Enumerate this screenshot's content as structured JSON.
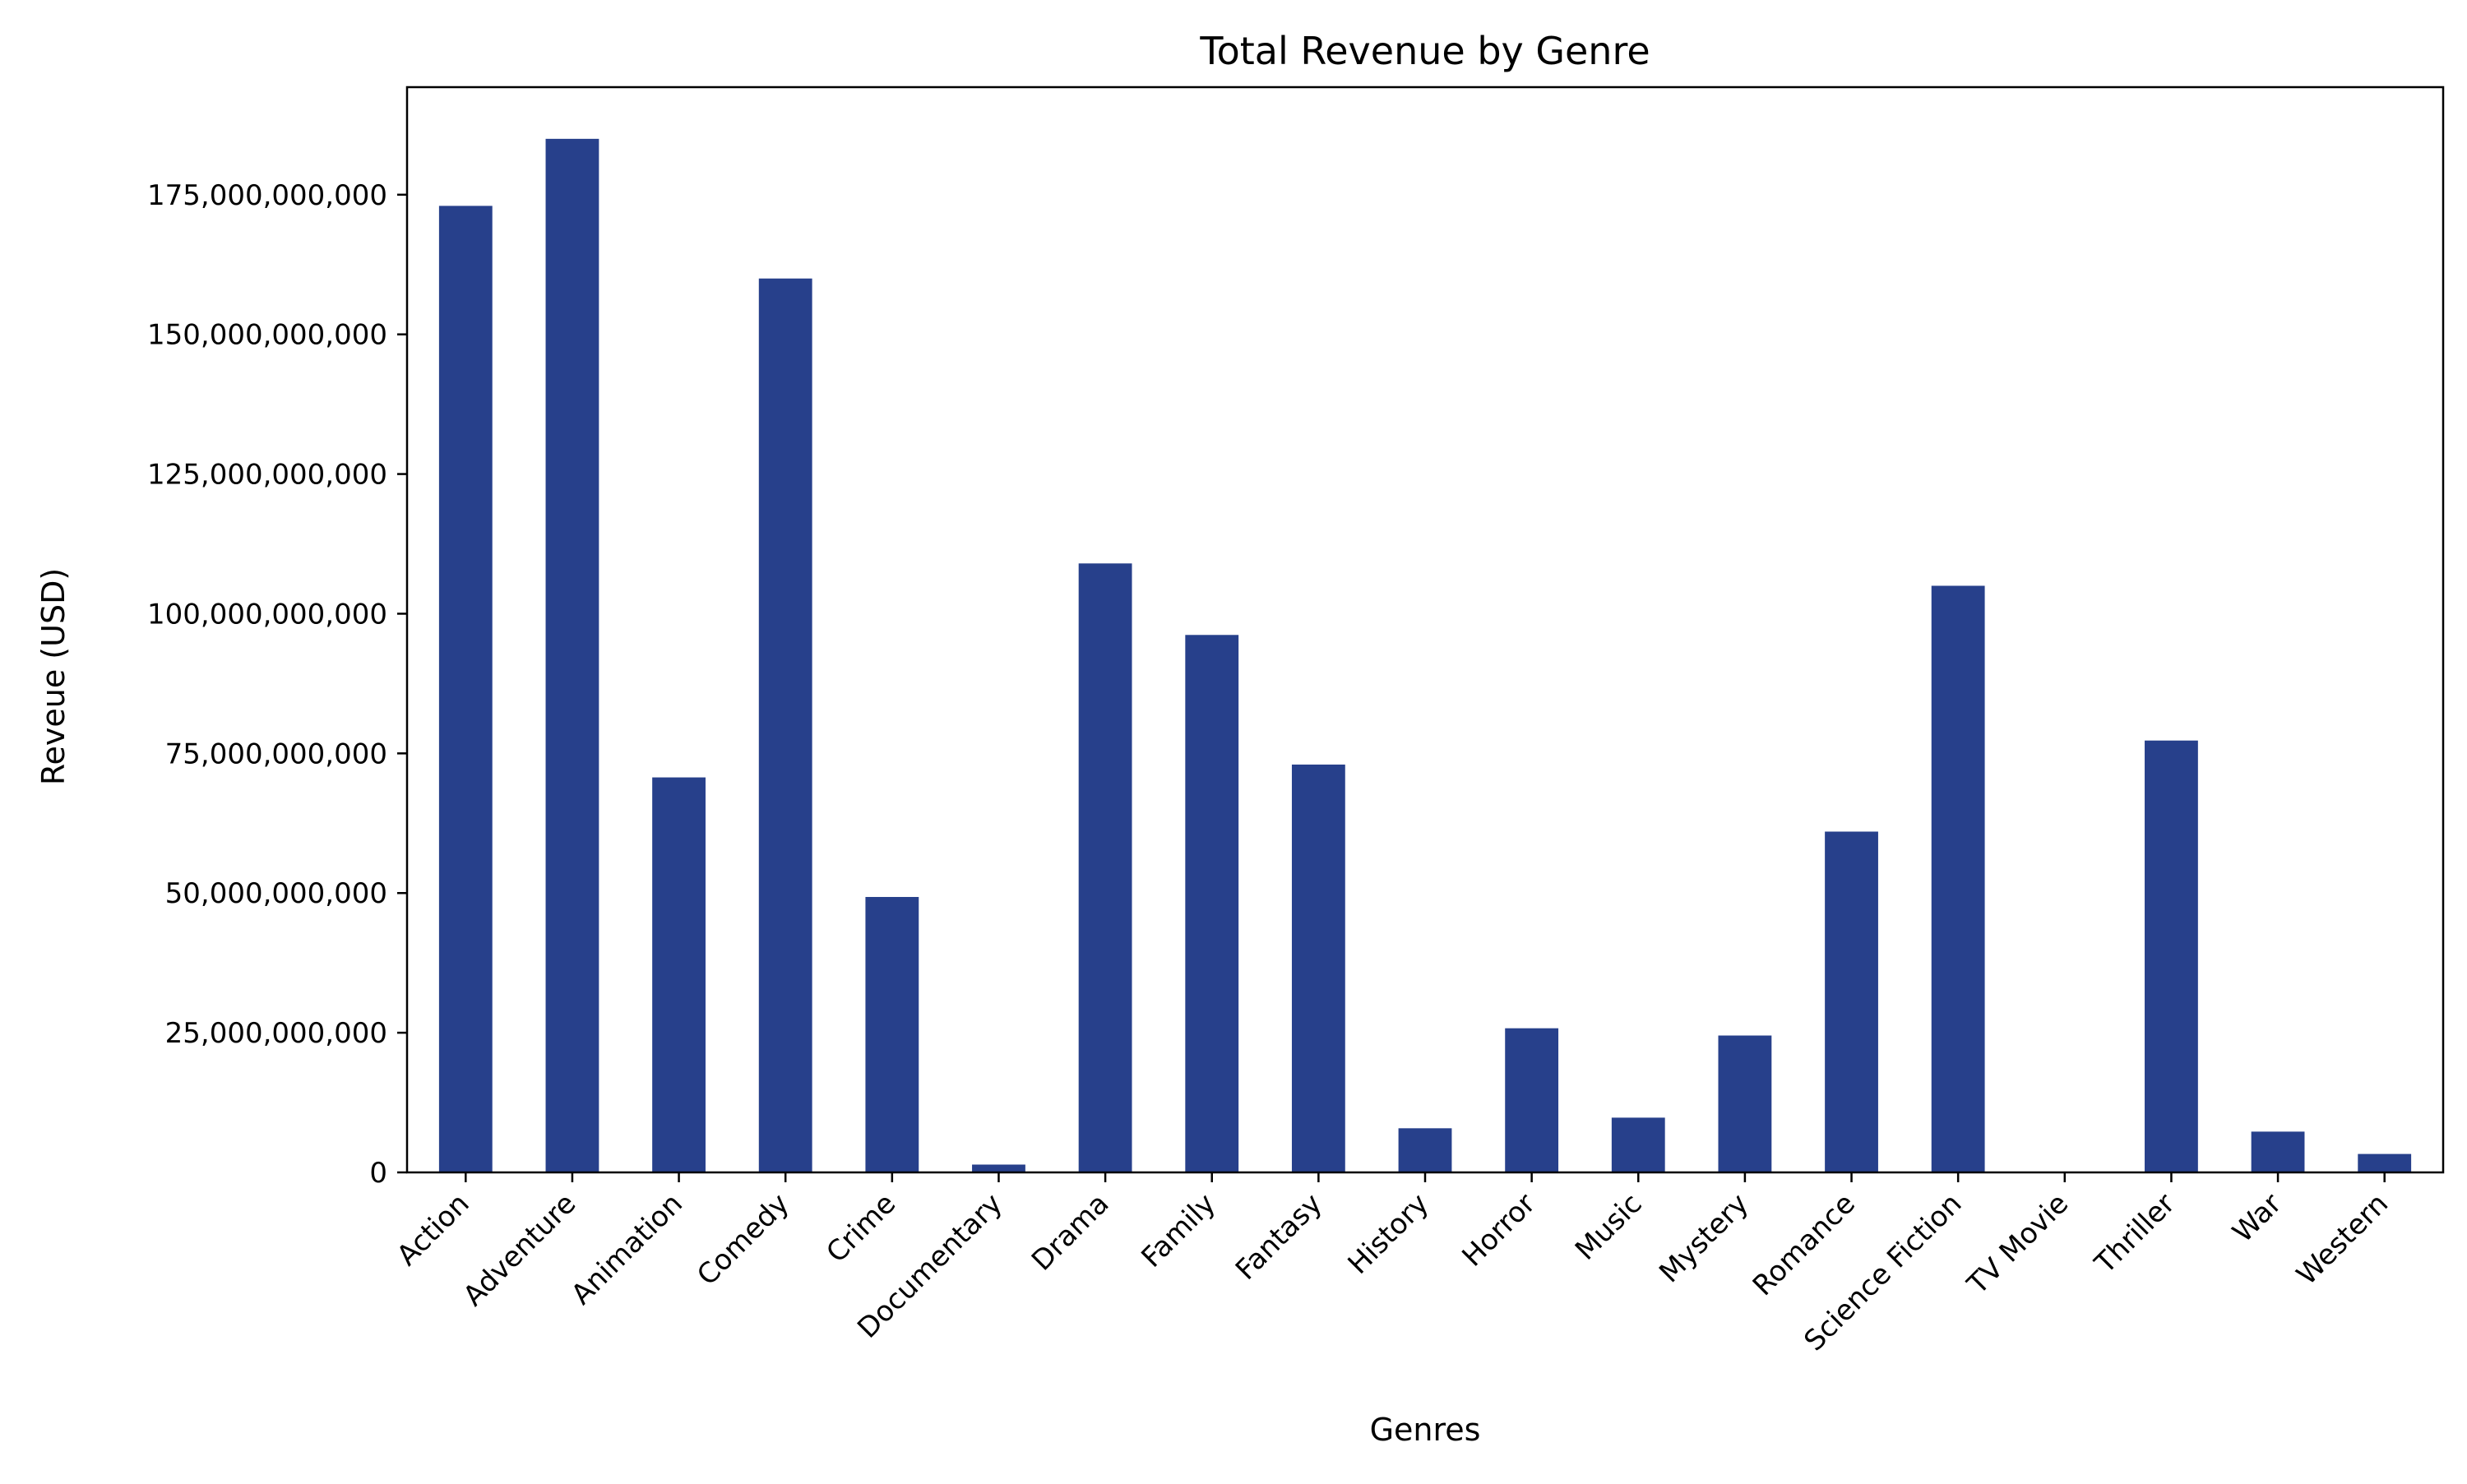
{
  "chart_data": {
    "type": "bar",
    "title": "Total Revenue by Genre",
    "xlabel": "Genres",
    "ylabel": "Reveue (USD)",
    "categories": [
      "Action",
      "Adventure",
      "Animation",
      "Comedy",
      "Crime",
      "Documentary",
      "Drama",
      "Family",
      "Fantasy",
      "History",
      "Horror",
      "Music",
      "Mystery",
      "Romance",
      "Science Fiction",
      "TV Movie",
      "Thriller",
      "War",
      "Western"
    ],
    "values": [
      173000000000,
      185000000000,
      70700000000,
      160000000000,
      49300000000,
      1400000000,
      109000000000,
      96200000000,
      73000000000,
      7900000000,
      25800000000,
      9800000000,
      24500000000,
      61000000000,
      105000000000,
      0,
      77300000000,
      7300000000,
      3300000000
    ],
    "ylim": [
      0,
      194250000000
    ],
    "yticks": [
      0,
      25000000000,
      50000000000,
      75000000000,
      100000000000,
      125000000000,
      150000000000,
      175000000000
    ],
    "ytick_labels": [
      "0",
      "25,000,000,000",
      "50,000,000,000",
      "75,000,000,000",
      "100,000,000,000",
      "125,000,000,000",
      "150,000,000,000",
      "175,000,000,000"
    ],
    "bar_color": "#27408b",
    "grid": false,
    "legend": "none"
  }
}
